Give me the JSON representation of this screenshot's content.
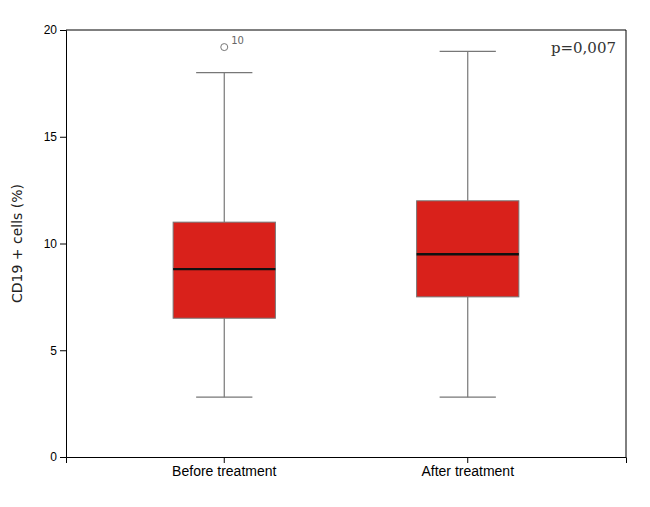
{
  "chart_data": {
    "type": "box",
    "categories": [
      "Before treatment",
      "After treatment"
    ],
    "boxes": [
      {
        "median": 8.8,
        "q1": 6.5,
        "q3": 11.0,
        "whisker_low": 2.8,
        "whisker_high": 18.0,
        "outliers": [
          19.2
        ],
        "outlier_labels": [
          "10"
        ]
      },
      {
        "median": 9.5,
        "q1": 7.5,
        "q3": 12.0,
        "whisker_low": 2.8,
        "whisker_high": 19.0,
        "outliers": [],
        "outlier_labels": []
      }
    ],
    "color": "#d9211b",
    "ylabel": "CD19 + cells (%)",
    "ylim": [
      0,
      20
    ],
    "yticks": [
      0,
      5,
      10,
      15,
      20
    ],
    "annotation": "p=0,007",
    "grid": false
  }
}
